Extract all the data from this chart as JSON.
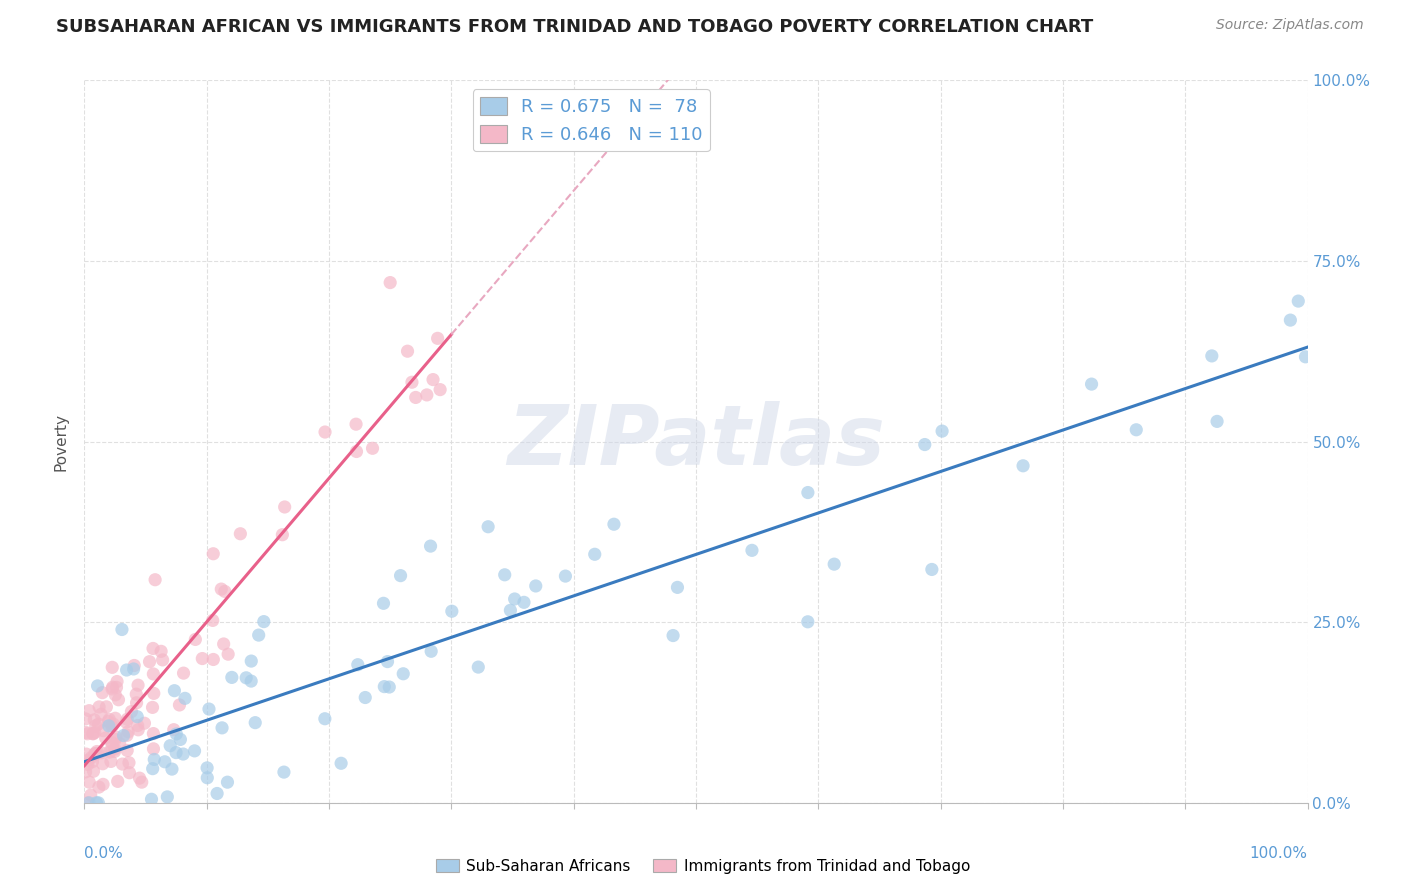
{
  "title": "SUBSAHARAN AFRICAN VS IMMIGRANTS FROM TRINIDAD AND TOBAGO POVERTY CORRELATION CHART",
  "source": "Source: ZipAtlas.com",
  "ylabel": "Poverty",
  "watermark": "ZIPatlas",
  "blue_R": 0.675,
  "blue_N": 78,
  "pink_R": 0.646,
  "pink_N": 110,
  "blue_color": "#a8cce8",
  "pink_color": "#f4b8c8",
  "blue_line_color": "#3a7bbf",
  "pink_line_color": "#e8608a",
  "pink_dash_color": "#e8a8c0",
  "legend_label_blue": "Sub-Saharan Africans",
  "legend_label_pink": "Immigrants from Trinidad and Tobago",
  "background_color": "#ffffff",
  "grid_color": "#dddddd",
  "right_axis_color": "#5b9bd5",
  "title_fontsize": 13,
  "axis_label_fontsize": 11,
  "legend_fontsize": 13
}
